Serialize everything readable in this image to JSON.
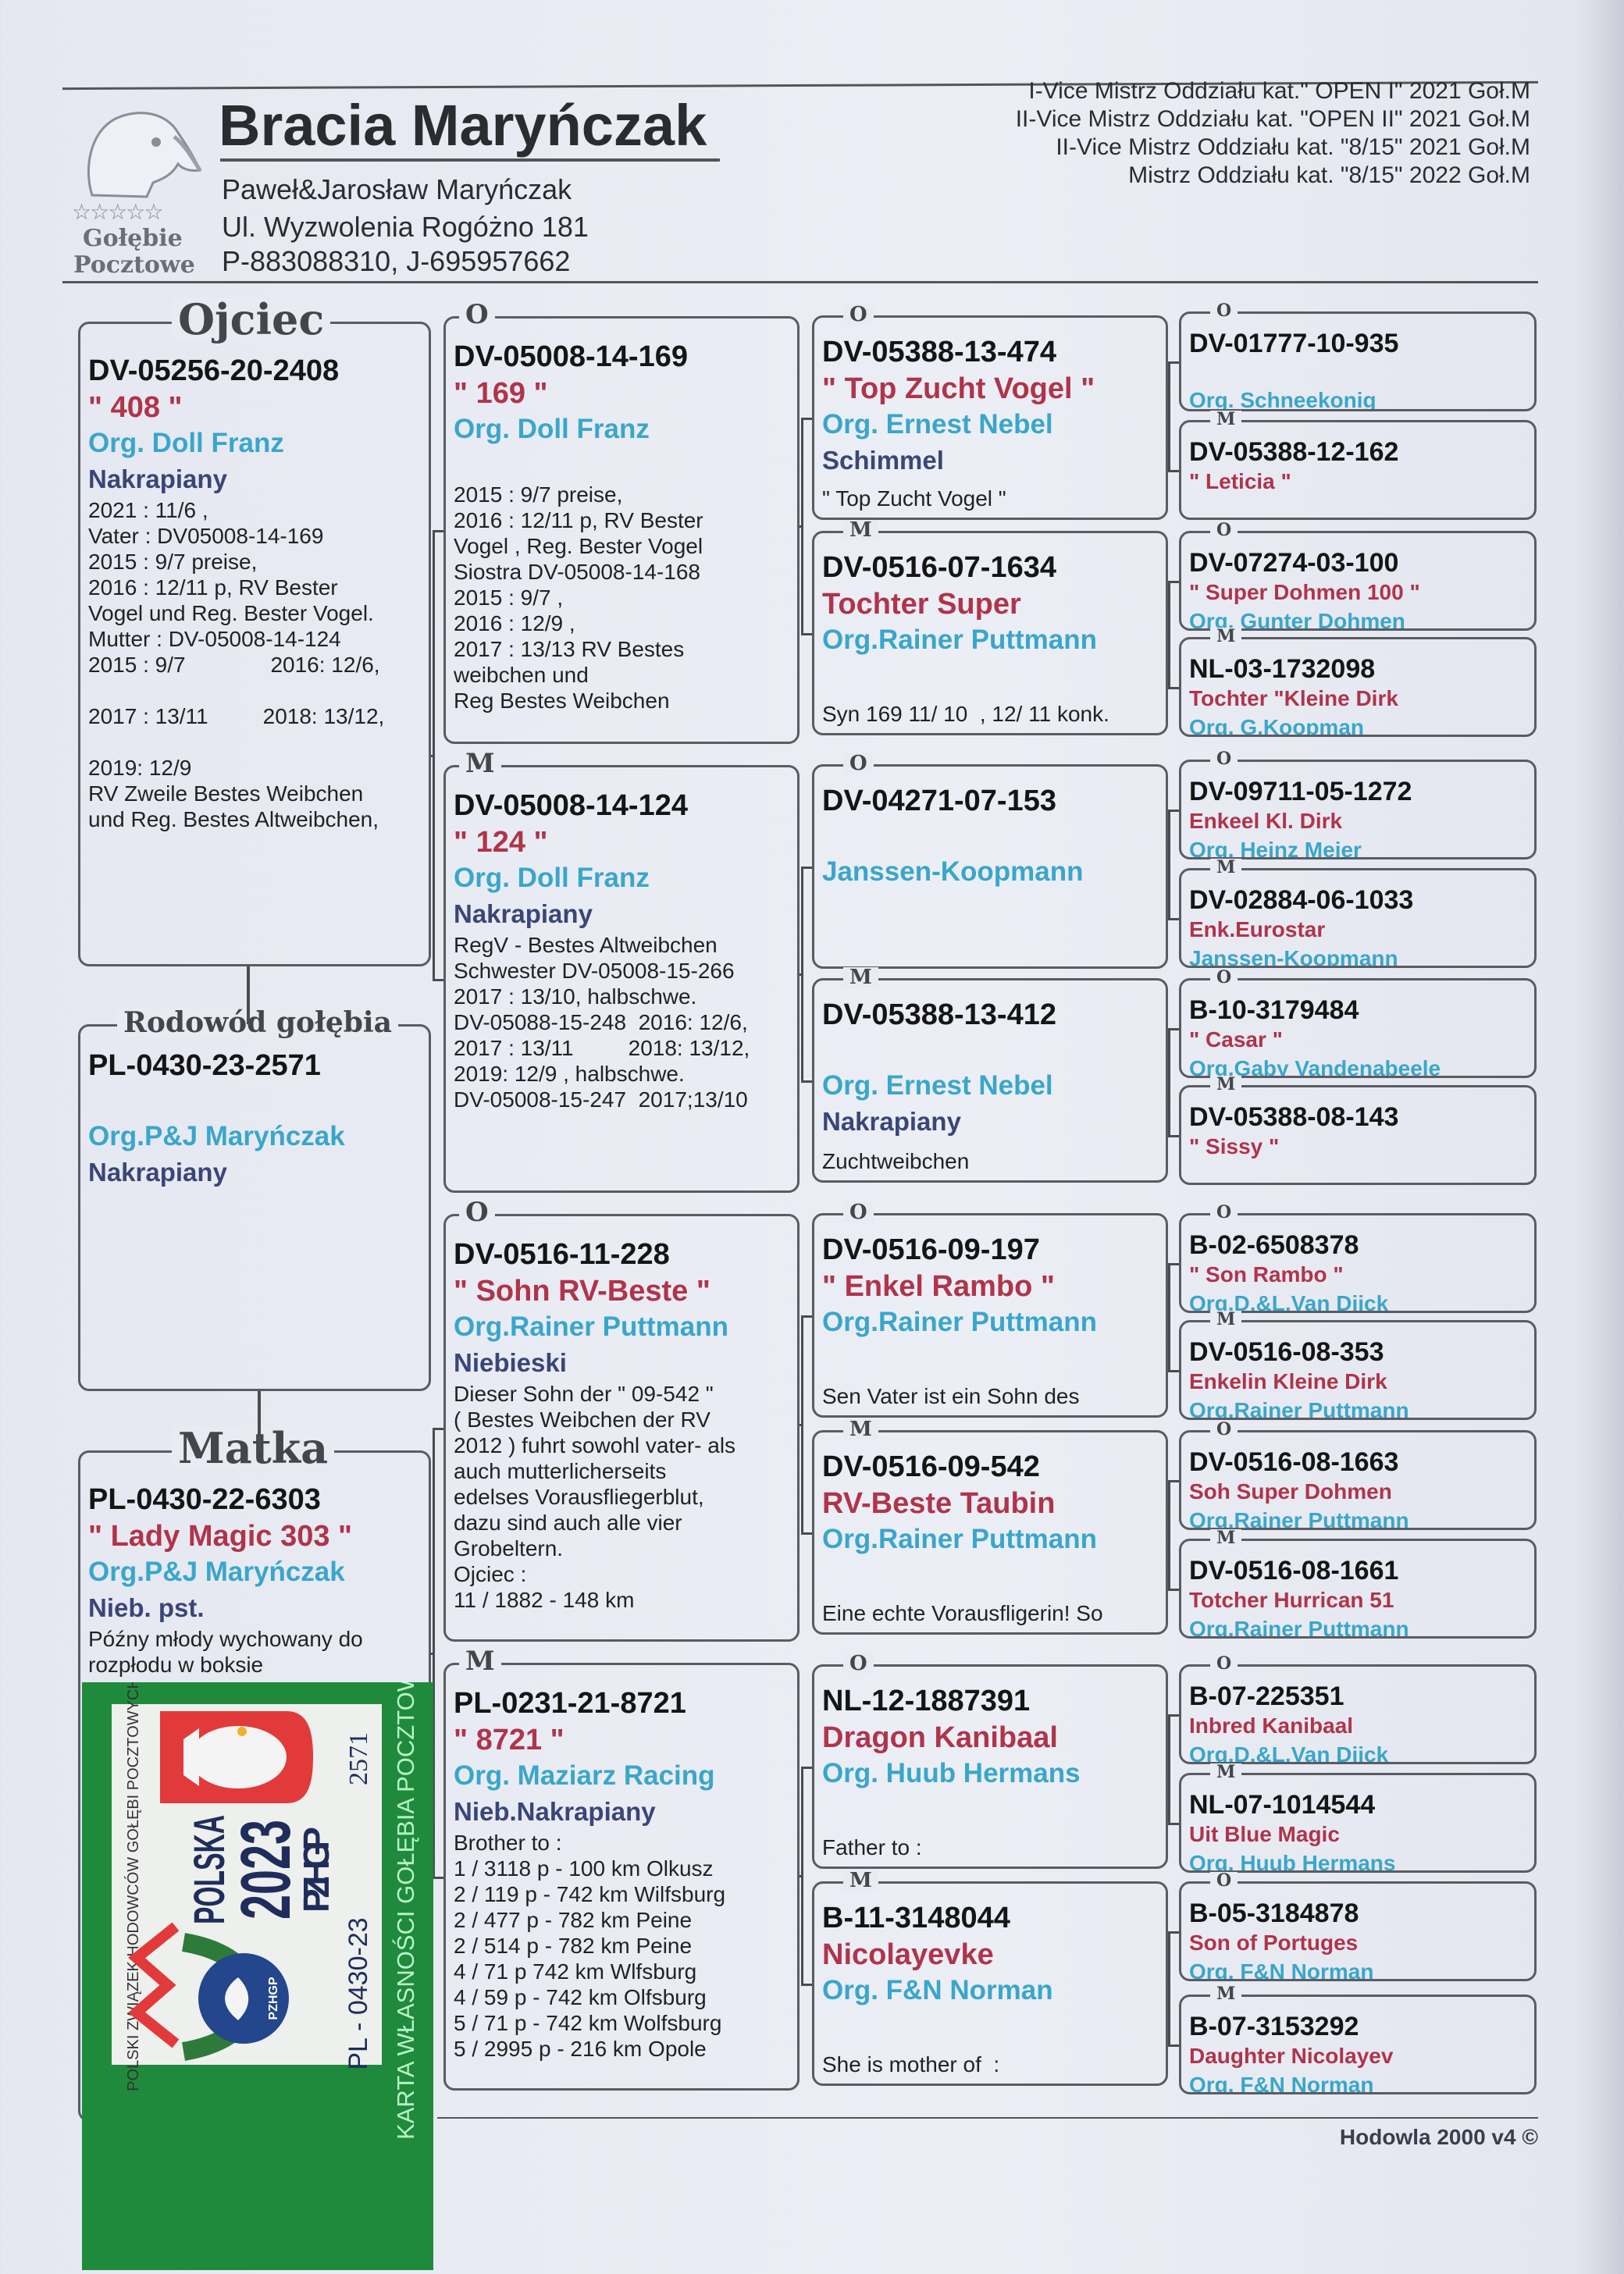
{
  "header": {
    "title": "Bracia Maryńczak",
    "owners": "Paweł&Jarosław Maryńczak",
    "address": "Ul. Wyzwolenia  Rogóżno 181",
    "phones": "P-883088310, J-695957662",
    "logo": {
      "stars": "☆☆☆☆☆",
      "line1": "Gołębie",
      "line2": "Pocztowe",
      "icon": "pigeon-head-icon"
    },
    "achievements": [
      "I-Vice Mistrz Oddziału kat.\" OPEN I\" 2021 Goł.M",
      "II-Vice Mistrz Oddziału kat. \"OPEN II\" 2021 Goł.M",
      "II-Vice Mistrz Oddziału kat. \"8/15\" 2021 Goł.M",
      "Mistrz Oddziału kat. \"8/15\" 2022 Goł.M"
    ]
  },
  "colors": {
    "ring": "#151515",
    "name": "#b0344a",
    "origin": "#39a6cc",
    "color_desc": "#3a4678",
    "card_green": "#1f8a3c"
  },
  "sire": {
    "legend": "Ojciec",
    "ring": "DV-05256-20-2408",
    "name": "\" 408 \"",
    "origin": "Org. Doll Franz",
    "color": "Nakrapiany",
    "notes": [
      "2021 : 11/6 ,",
      "Vater : DV05008-14-169",
      "2015 : 9/7 preise,",
      "2016 : 12/11 p, RV Bester",
      "Vogel und Reg. Bester Vogel.",
      "Mutter : DV-05008-14-124",
      "2015 : 9/7              2016: 12/6,",
      " ",
      "2017 : 13/11         2018: 13/12,",
      " ",
      "2019: 12/9",
      "RV Zweile Bestes Weibchen",
      "und Reg. Bestes Altweibchen,"
    ]
  },
  "subject": {
    "legend": "Rodowód gołębia",
    "ring": "PL-0430-23-2571",
    "name": "",
    "origin": "Org.P&J Maryńczak",
    "color": "Nakrapiany",
    "notes": []
  },
  "dam": {
    "legend": "Matka",
    "ring": "PL-0430-22-6303",
    "name": "\" Lady Magic 303 \"",
    "origin": "Org.P&J Maryńczak",
    "color": "Nieb. pst.",
    "notes": [
      "Późny młody wychowany do",
      "rozpłodu w boksie"
    ]
  },
  "grandparents": [
    {
      "legend": "O",
      "ring": "DV-05008-14-169",
      "name": "\" 169 \"",
      "origin": "Org. Doll Franz",
      "color": "",
      "notes": [
        "2015 : 9/7 preise,",
        "2016 : 12/11 p, RV Bester",
        "Vogel , Reg. Bester Vogel",
        "Siostra DV-05008-14-168",
        "2015 : 9/7 ,",
        "2016 : 12/9 ,",
        "2017 : 13/13 RV Bestes",
        "weibchen und",
        "Reg Bestes Weibchen"
      ]
    },
    {
      "legend": "M",
      "ring": "DV-05008-14-124",
      "name": "\" 124 \"",
      "origin": "Org. Doll Franz",
      "color": "Nakrapiany",
      "notes": [
        "RegV - Bestes Altweibchen",
        "Schwester DV-05008-15-266",
        "2017 : 13/10, halbschwe.",
        "DV-05088-15-248  2016: 12/6,",
        "2017 : 13/11         2018: 13/12,",
        "2019: 12/9 , halbschwe.",
        "DV-05008-15-247  2017;13/10"
      ]
    },
    {
      "legend": "O",
      "ring": "DV-0516-11-228",
      "name": "\" Sohn RV-Beste \"",
      "origin": "Org.Rainer Puttmann",
      "color": "Niebieski",
      "notes": [
        "Dieser Sohn der \" 09-542 \"",
        "( Bestes Weibchen der RV",
        "2012 ) fuhrt sowohl vater- als",
        "auch mutterlicherseits",
        "edelses Vorausfliegerblut,",
        "dazu sind auch alle vier",
        "Grobeltern.",
        "Ojciec :",
        "11 / 1882 - 148 km"
      ]
    },
    {
      "legend": "M",
      "ring": "PL-0231-21-8721",
      "name": "\" 8721 \"",
      "origin": "Org. Maziarz Racing",
      "color": "Nieb.Nakrapiany",
      "notes": [
        "Brother to :",
        "1 / 3118 p - 100 km Olkusz",
        "2 / 119 p - 742 km Wilfsburg",
        "2 / 477 p - 782 km Peine",
        "2 / 514 p - 782 km Peine",
        "4 / 71 p 742 km Wlfsburg",
        "4 / 59 p - 742 km Olfsburg",
        "5 / 71 p - 742 km Wolfsburg",
        "5 / 2995 p - 216 km Opole"
      ]
    }
  ],
  "great_grandparents": [
    {
      "legend": "O",
      "ring": "DV-05388-13-474",
      "name": "\" Top Zucht Vogel \"",
      "origin": "Org. Ernest Nebel",
      "color": "Schimmel",
      "notes": [
        "\" Top Zucht Vogel \""
      ]
    },
    {
      "legend": "M",
      "ring": "DV-0516-07-1634",
      "name": "Tochter Super",
      "origin": "Org.Rainer Puttmann",
      "color": "",
      "notes": [
        "Syn 169 11/ 10  , 12/ 11 konk."
      ]
    },
    {
      "legend": "O",
      "ring": "DV-04271-07-153",
      "name": "",
      "origin": "Janssen-Koopmann",
      "color": "",
      "notes": []
    },
    {
      "legend": "M",
      "ring": "DV-05388-13-412",
      "name": "",
      "origin": "Org. Ernest Nebel",
      "color": "Nakrapiany",
      "notes": [
        "Zuchtweibchen"
      ]
    },
    {
      "legend": "O",
      "ring": "DV-0516-09-197",
      "name": "\" Enkel Rambo \"",
      "origin": "Org.Rainer Puttmann",
      "color": "",
      "notes": [
        "Sen Vater ist ein Sohn des"
      ]
    },
    {
      "legend": "M",
      "ring": "DV-0516-09-542",
      "name": "RV-Beste Taubin",
      "origin": "Org.Rainer Puttmann",
      "color": "",
      "notes": [
        "Eine echte Vorausfligerin! So"
      ]
    },
    {
      "legend": "O",
      "ring": "NL-12-1887391",
      "name": "Dragon Kanibaal",
      "origin": "Org. Huub Hermans",
      "color": "",
      "notes": [
        "Father to :"
      ]
    },
    {
      "legend": "M",
      "ring": "B-11-3148044",
      "name": "Nicolayevke",
      "origin": "Org. F&N Norman",
      "color": "",
      "notes": [
        "She is mother of  :"
      ]
    }
  ],
  "great_great_grandparents": [
    {
      "legend": "O",
      "ring": "DV-01777-10-935",
      "name": "",
      "origin": "Org. Schneekonig"
    },
    {
      "legend": "M",
      "ring": "DV-05388-12-162",
      "name": "\" Leticia \"",
      "origin": ""
    },
    {
      "legend": "O",
      "ring": "DV-07274-03-100",
      "name": "\" Super Dohmen 100 \"",
      "origin": "Org. Gunter Dohmen"
    },
    {
      "legend": "M",
      "ring": "NL-03-1732098",
      "name": "Tochter \"Kleine Dirk",
      "origin": "Org. G.Koopman"
    },
    {
      "legend": "O",
      "ring": "DV-09711-05-1272",
      "name": "Enkeel Kl. Dirk",
      "origin": "Org. Heinz Meier"
    },
    {
      "legend": "M",
      "ring": "DV-02884-06-1033",
      "name": "Enk.Eurostar",
      "origin": "Janssen-Koopmann"
    },
    {
      "legend": "O",
      "ring": "B-10-3179484",
      "name": "\" Casar \"",
      "origin": "Org.Gaby Vandenabeele"
    },
    {
      "legend": "M",
      "ring": "DV-05388-08-143",
      "name": "\" Sissy \"",
      "origin": ""
    },
    {
      "legend": "O",
      "ring": "B-02-6508378",
      "name": "\" Son Rambo \"",
      "origin": "Org.D.&L.Van Dijck"
    },
    {
      "legend": "M",
      "ring": "DV-0516-08-353",
      "name": "Enkelin Kleine Dirk",
      "origin": "Org.Rainer Puttmann"
    },
    {
      "legend": "O",
      "ring": "DV-0516-08-1663",
      "name": "Soh Super Dohmen",
      "origin": "Org.Rainer Puttmann"
    },
    {
      "legend": "M",
      "ring": "DV-0516-08-1661",
      "name": "Totcher Hurrican 51",
      "origin": "Org.Rainer Puttmann"
    },
    {
      "legend": "O",
      "ring": "B-07-225351",
      "name": "Inbred Kanibaal",
      "origin": "Org.D.&L.Van Dijck"
    },
    {
      "legend": "M",
      "ring": "NL-07-1014544",
      "name": "Uit Blue Magic",
      "origin": "Org. Huub Hermans"
    },
    {
      "legend": "O",
      "ring": "B-05-3184878",
      "name": "Son of Portuges",
      "origin": "Org. F&N Norman"
    },
    {
      "legend": "M",
      "ring": "B-07-3153292",
      "name": "Daughter Nicolayev",
      "origin": "Org. F&N Norman"
    }
  ],
  "ownership_card": {
    "union": "POLSKI ZWIĄZEK HODOWCÓW GOŁĘBI POCZTOWYCH",
    "country": "POLSKA",
    "year": "2023",
    "org": "PZHGP",
    "badge": "PZHGP",
    "number": "2571",
    "ring_prefix": "PL - 0430-23",
    "caption": "KARTA WŁASNOŚCI GOŁĘBIA POCZTOWEGO"
  },
  "footer": {
    "software": "Hodowla 2000 v4 ©"
  }
}
